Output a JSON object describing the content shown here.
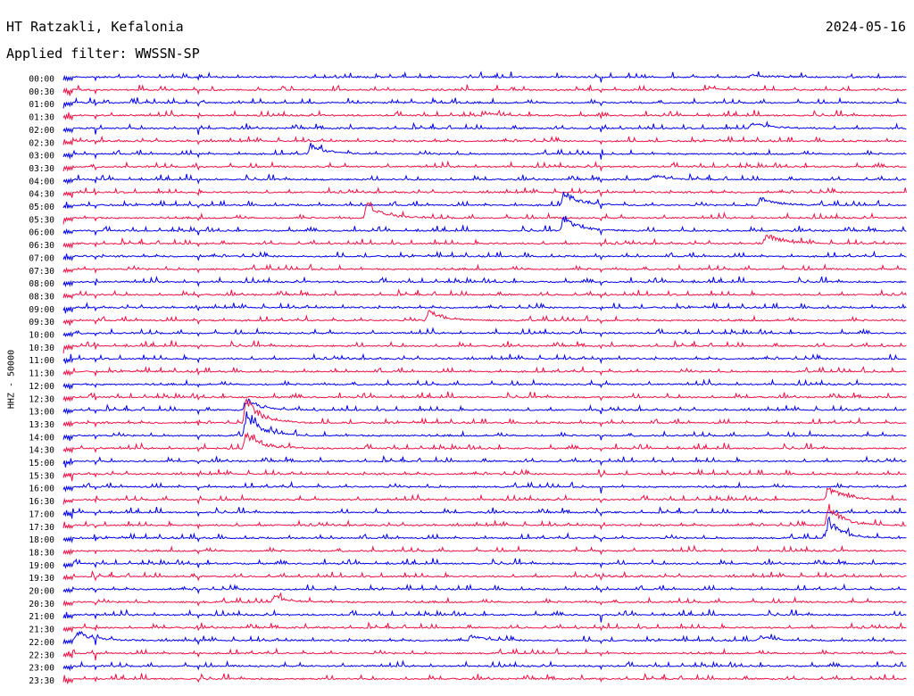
{
  "header": {
    "station": "HT Ratzakli, Kefalonia",
    "filter": "Applied filter: WWSSN-SP",
    "date": "2024-05-16"
  },
  "chart_data": {
    "type": "line",
    "title": "HT Ratzakli, Kefalonia",
    "subtitle": "Applied filter: WWSSN-SP",
    "ylabel": "HHZ - 50000",
    "xlabel": "",
    "row_labels": [
      "00:00",
      "00:30",
      "01:00",
      "01:30",
      "02:00",
      "02:30",
      "03:00",
      "03:30",
      "04:00",
      "04:30",
      "05:00",
      "05:30",
      "06:00",
      "06:30",
      "07:00",
      "07:30",
      "08:00",
      "08:30",
      "09:00",
      "09:30",
      "10:00",
      "10:30",
      "11:00",
      "11:30",
      "12:00",
      "12:30",
      "13:00",
      "13:30",
      "14:00",
      "14:30",
      "15:00",
      "15:30",
      "16:00",
      "16:30",
      "17:00",
      "17:30",
      "18:00",
      "18:30",
      "19:00",
      "19:30",
      "20:00",
      "20:30",
      "21:00",
      "21:30",
      "22:00",
      "22:30",
      "23:00",
      "23:30"
    ],
    "row_minutes": 30,
    "series_colors": [
      "#0000ee",
      "#ee1144"
    ],
    "events": [
      {
        "row": 0,
        "minute": 24.5,
        "amplitude": 3
      },
      {
        "row": 1,
        "minute": 23.0,
        "amplitude": 3
      },
      {
        "row": 3,
        "minute": 15.0,
        "amplitude": 3
      },
      {
        "row": 4,
        "minute": 24.5,
        "amplitude": 8
      },
      {
        "row": 6,
        "minute": 8.8,
        "amplitude": 12
      },
      {
        "row": 8,
        "minute": 21.0,
        "amplitude": 6
      },
      {
        "row": 10,
        "minute": 17.8,
        "amplitude": 16
      },
      {
        "row": 10,
        "minute": 24.8,
        "amplitude": 10
      },
      {
        "row": 11,
        "minute": 10.8,
        "amplitude": 22
      },
      {
        "row": 12,
        "minute": 17.8,
        "amplitude": 18
      },
      {
        "row": 13,
        "minute": 25.0,
        "amplitude": 12
      },
      {
        "row": 19,
        "minute": 13.0,
        "amplitude": 12
      },
      {
        "row": 26,
        "minute": 6.5,
        "amplitude": 14
      },
      {
        "row": 27,
        "minute": 6.5,
        "amplitude": 30
      },
      {
        "row": 28,
        "minute": 6.5,
        "amplitude": 28
      },
      {
        "row": 29,
        "minute": 6.5,
        "amplitude": 20
      },
      {
        "row": 33,
        "minute": 27.2,
        "amplitude": 16
      },
      {
        "row": 35,
        "minute": 27.2,
        "amplitude": 26
      },
      {
        "row": 36,
        "minute": 27.2,
        "amplitude": 22
      },
      {
        "row": 41,
        "minute": 7.5,
        "amplitude": 8
      },
      {
        "row": 44,
        "minute": 0.5,
        "amplitude": 12
      },
      {
        "row": 44,
        "minute": 14.5,
        "amplitude": 6
      },
      {
        "row": 44,
        "minute": 24.8,
        "amplitude": 6
      }
    ]
  }
}
